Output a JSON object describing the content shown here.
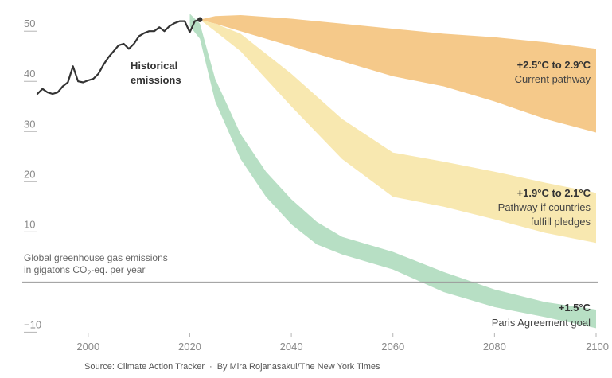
{
  "chart_data": {
    "type": "area",
    "y_axis_title_line1": "Global greenhouse gas emissions",
    "y_axis_title_line2_prefix": "in gigatons CO",
    "y_axis_title_line2_sub": "2",
    "y_axis_title_line2_suffix": "-eq. per year",
    "xlim": [
      1990,
      2100
    ],
    "ylim": [
      -12,
      54
    ],
    "x_ticks": [
      "2000",
      "2020",
      "2040",
      "2060",
      "2080",
      "2100"
    ],
    "x_tick_values": [
      2000,
      2020,
      2040,
      2060,
      2080,
      2100
    ],
    "y_ticks": [
      "50",
      "40",
      "30",
      "20",
      "10",
      "−10"
    ],
    "y_tick_values": [
      50,
      40,
      30,
      20,
      10,
      -10
    ],
    "grid": false,
    "historical": {
      "label_line1": "Historical",
      "label_line2": "emissions",
      "color": "#333333",
      "x": [
        1990,
        1991,
        1992,
        1993,
        1994,
        1995,
        1996,
        1997,
        1998,
        1999,
        2000,
        2001,
        2002,
        2003,
        2004,
        2005,
        2006,
        2007,
        2008,
        2009,
        2010,
        2011,
        2012,
        2013,
        2014,
        2015,
        2016,
        2017,
        2018,
        2019,
        2020,
        2021,
        2022
      ],
      "y": [
        37.5,
        38.5,
        37.8,
        37.5,
        37.8,
        39.0,
        39.8,
        43.0,
        40.0,
        39.8,
        40.2,
        40.5,
        41.5,
        43.3,
        44.8,
        46.0,
        47.2,
        47.5,
        46.5,
        47.5,
        49.0,
        49.6,
        50.0,
        50.0,
        50.8,
        50.0,
        51.0,
        51.6,
        52.0,
        52.0,
        49.8,
        52.0,
        52.3
      ]
    },
    "series": [
      {
        "label_line1": "+2.5°C to 2.9°C",
        "label_line2": "Current pathway",
        "color": "#f5c98a",
        "x": [
          2022,
          2025,
          2030,
          2040,
          2050,
          2060,
          2070,
          2080,
          2090,
          2100
        ],
        "upper": [
          52.3,
          53.0,
          53.2,
          52.5,
          51.5,
          50.5,
          49.5,
          48.8,
          47.8,
          46.5
        ],
        "lower": [
          52.3,
          51.5,
          50.0,
          47.0,
          44.0,
          41.0,
          39.0,
          36.0,
          32.5,
          29.8
        ]
      },
      {
        "label_line1": "+1.9°C to 2.1°C",
        "label_line2": "Pathway if countries",
        "label_line3": "fulfill pledges",
        "color": "#f8e8b0",
        "x": [
          2022,
          2025,
          2030,
          2040,
          2050,
          2060,
          2070,
          2080,
          2090,
          2100
        ],
        "upper": [
          52.3,
          51.5,
          49.5,
          41.5,
          32.5,
          25.8,
          24.0,
          22.0,
          19.8,
          17.8
        ],
        "lower": [
          52.3,
          50.0,
          46.0,
          35.0,
          24.5,
          17.0,
          15.0,
          12.5,
          9.8,
          7.8
        ]
      },
      {
        "label_line1": "+1.5°C",
        "label_line2": "Paris Agreement goal",
        "color": "#b7dfc4",
        "x": [
          2020,
          2022,
          2025,
          2030,
          2035,
          2040,
          2045,
          2050,
          2060,
          2070,
          2080,
          2090,
          2100
        ],
        "upper": [
          53.5,
          51.5,
          40.5,
          29.5,
          22.0,
          16.5,
          12.0,
          9.0,
          6.0,
          2.0,
          -1.5,
          -4.0,
          -5.5
        ],
        "lower": [
          51.0,
          48.5,
          36.0,
          24.5,
          17.0,
          11.5,
          7.5,
          5.5,
          2.5,
          -2.0,
          -5.0,
          -7.0,
          -9.2
        ]
      }
    ]
  },
  "footer": {
    "source": "Source: Climate Action Tracker",
    "separator": "·",
    "credit": "By Mira Rojanasakul/The New York Times"
  }
}
